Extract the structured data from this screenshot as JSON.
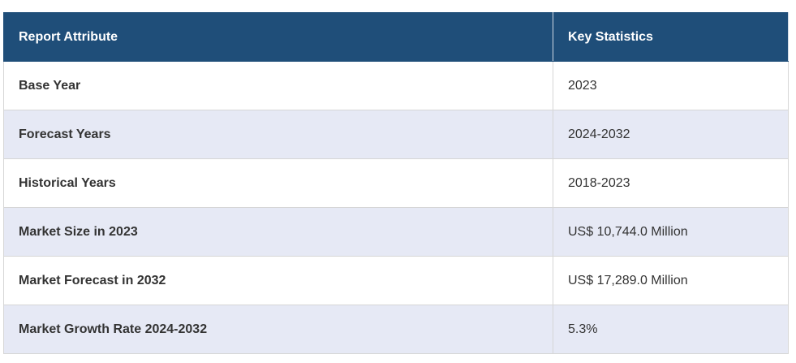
{
  "table": {
    "header": [
      "Report Attribute",
      "Key Statistics"
    ],
    "rows": [
      [
        "Base Year",
        "2023"
      ],
      [
        "Forecast Years",
        "2024-2032"
      ],
      [
        "Historical Years",
        "2018-2023"
      ],
      [
        "Market Size in 2023",
        "US$ 10,744.0 Million"
      ],
      [
        "Market Forecast in 2032",
        "US$ 17,289.0 Million"
      ],
      [
        "Market Growth Rate 2024-2032",
        "5.3%"
      ]
    ]
  }
}
